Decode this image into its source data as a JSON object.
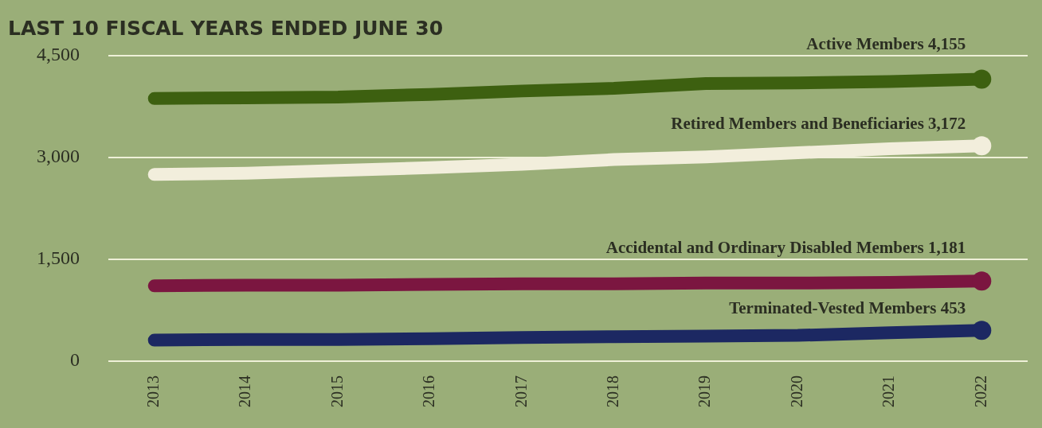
{
  "chart_data": {
    "type": "line",
    "title": "LAST 10 FISCAL YEARS ENDED JUNE 30",
    "categories": [
      "2013",
      "2014",
      "2015",
      "2016",
      "2017",
      "2018",
      "2019",
      "2020",
      "2021",
      "2022"
    ],
    "series": [
      {
        "name": "Active Members",
        "color": "#3d6010",
        "values": [
          3870,
          3880,
          3890,
          3930,
          3980,
          4020,
          4090,
          4100,
          4120,
          4155
        ],
        "value_labels": [
          null,
          null,
          null,
          null,
          null,
          null,
          null,
          null,
          null,
          "4,155"
        ]
      },
      {
        "name": "Retired Members and Beneficiaries",
        "color": "#f2eedc",
        "values": [
          2750,
          2770,
          2810,
          2850,
          2900,
          2970,
          3010,
          3070,
          3130,
          3172
        ],
        "value_labels": [
          null,
          null,
          null,
          null,
          null,
          null,
          null,
          null,
          null,
          "3,172"
        ]
      },
      {
        "name": "Accidental and Ordinary Disabled Members",
        "color": "#7b1640",
        "values": [
          1110,
          1120,
          1120,
          1130,
          1140,
          1140,
          1150,
          1150,
          1160,
          1181
        ],
        "value_labels": [
          null,
          null,
          null,
          null,
          null,
          null,
          null,
          null,
          null,
          "1,181"
        ]
      },
      {
        "name": "Terminated-Vested Members",
        "color": "#1c2862",
        "values": [
          310,
          320,
          320,
          330,
          350,
          360,
          370,
          380,
          420,
          453
        ],
        "value_labels": [
          null,
          null,
          null,
          null,
          null,
          null,
          null,
          null,
          null,
          "453"
        ]
      }
    ],
    "ylim": [
      0,
      4500
    ],
    "yticks": [
      {
        "value": 0,
        "label": "0"
      },
      {
        "value": 1500,
        "label": "1,500"
      },
      {
        "value": 3000,
        "label": "3,000"
      },
      {
        "value": 4500,
        "label": "4,500"
      }
    ],
    "grid": "y",
    "legend": false,
    "line_style": "solid"
  }
}
